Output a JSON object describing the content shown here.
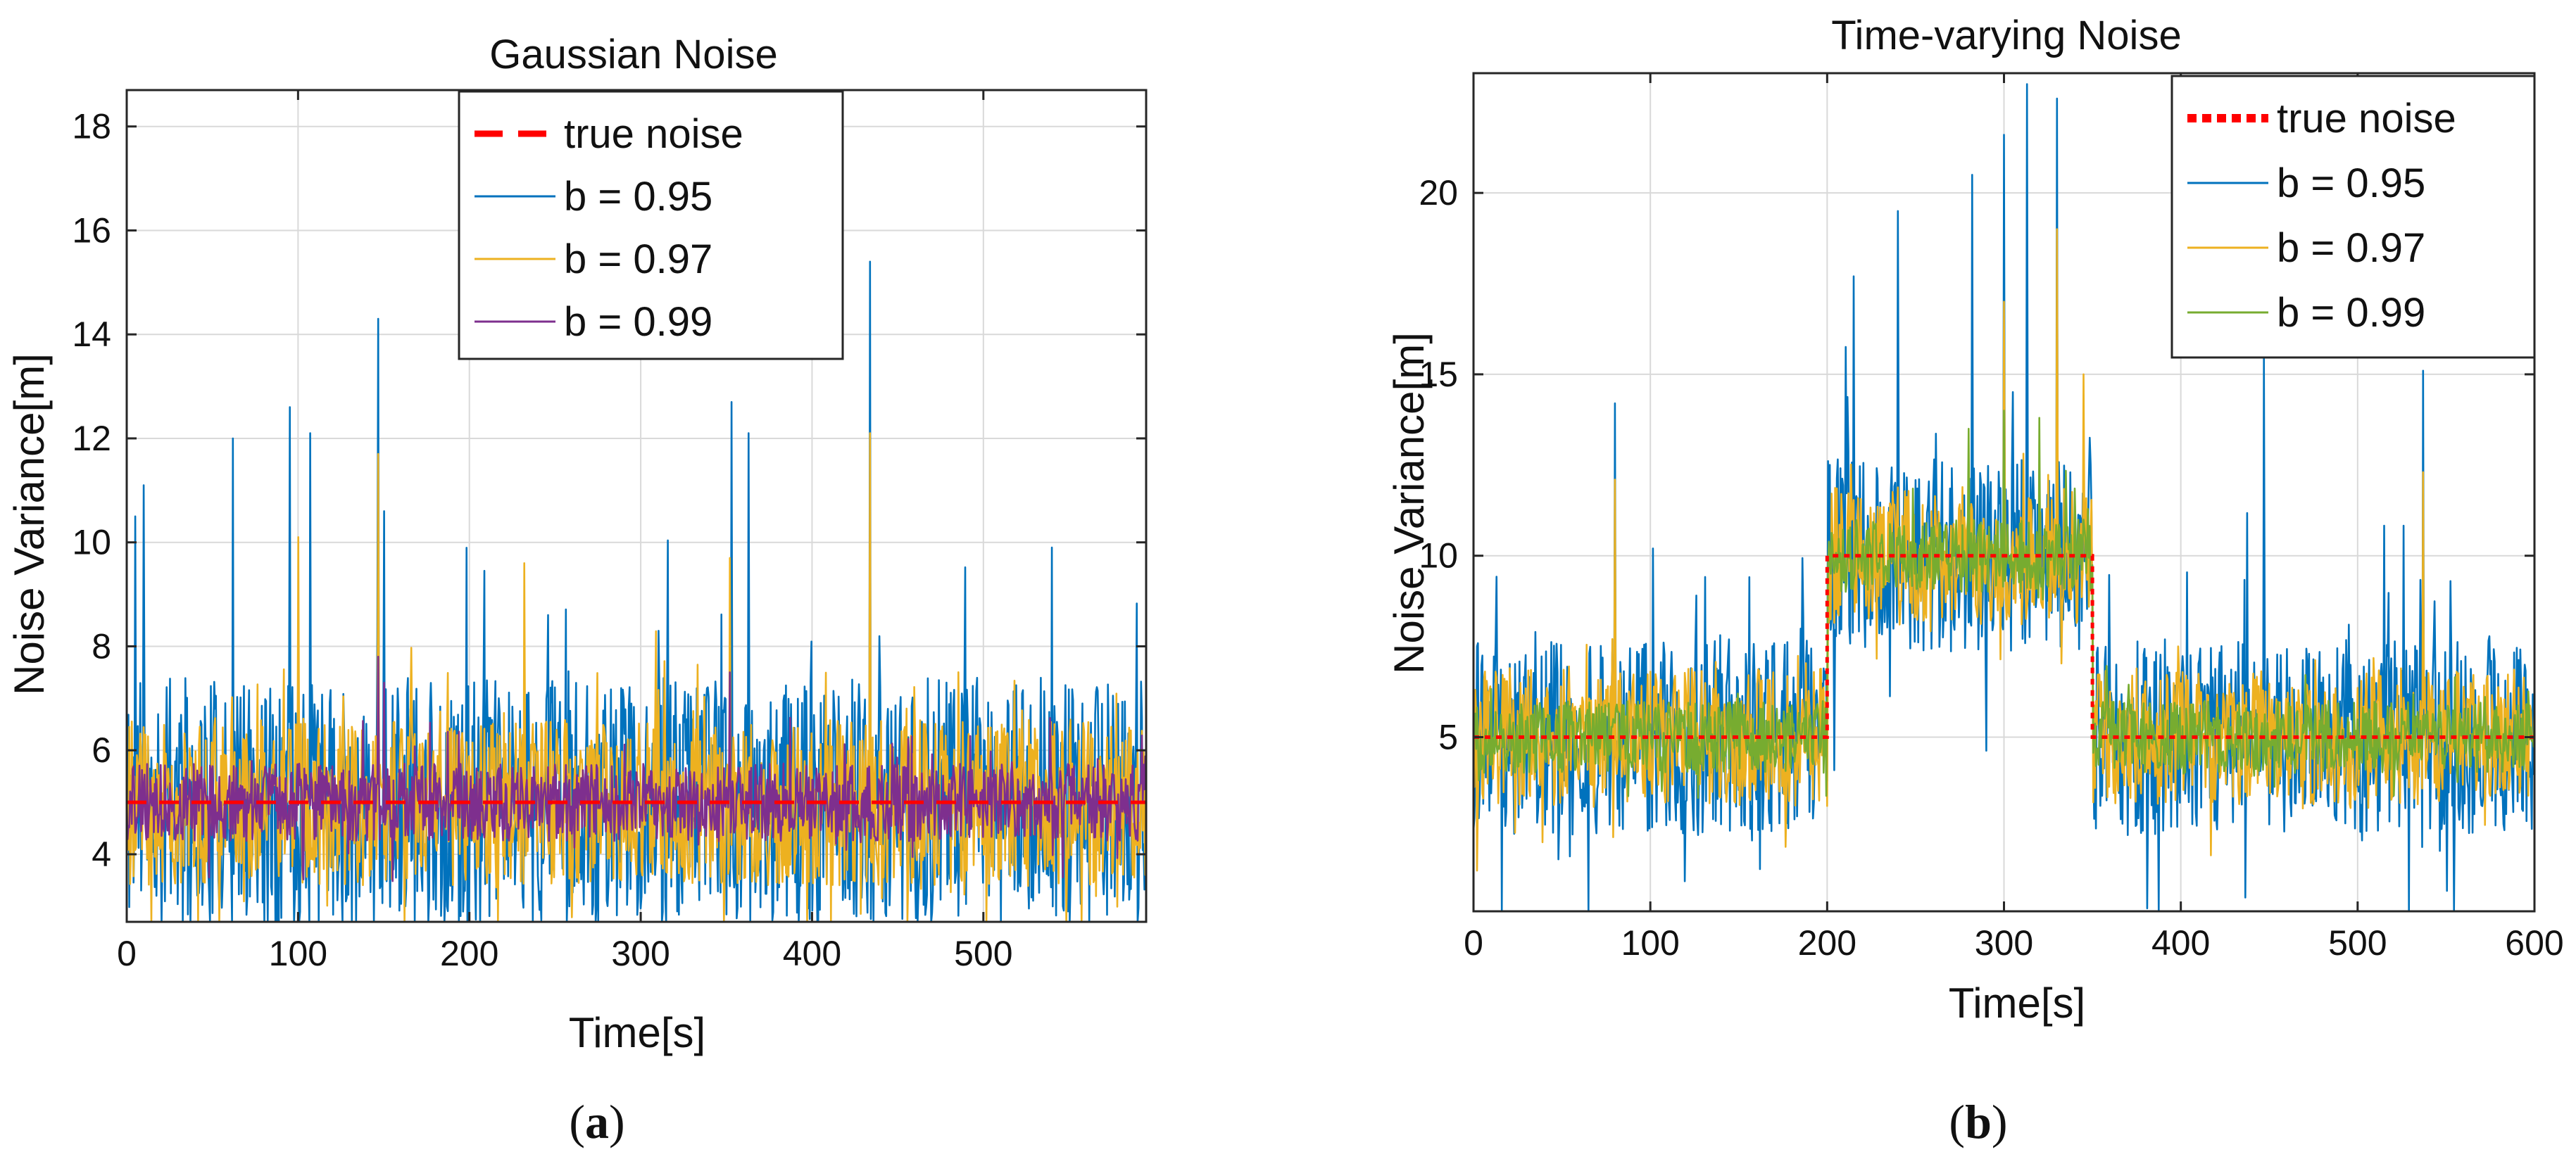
{
  "figure": {
    "panel_labels": [
      {
        "open": "(",
        "letter": "a",
        "close": ")"
      },
      {
        "open": "(",
        "letter": "b",
        "close": ")"
      }
    ]
  },
  "chart_data": [
    {
      "type": "line",
      "title": "Gaussian Noise",
      "xlabel": "Time[s]",
      "ylabel": "Noise Variance[m]",
      "xlim": [
        0,
        595
      ],
      "ylim": [
        2.7,
        18.7
      ],
      "xticks": [
        0,
        100,
        200,
        300,
        400,
        500
      ],
      "yticks": [
        4,
        6,
        8,
        10,
        12,
        14,
        16,
        18
      ],
      "grid": true,
      "legend_position": "top-center",
      "series": [
        {
          "name": "true noise",
          "color": "#ff0000",
          "style": "dashed",
          "segments": [
            {
              "x_start": 0,
              "x_end": 595,
              "mean": 5
            }
          ]
        },
        {
          "name": "b = 0.95",
          "color": "#0072bd",
          "style": "solid",
          "segments": [
            {
              "x_start": 0,
              "x_end": 595,
              "mean": 5
            }
          ],
          "spread": 2.4,
          "seed": 11,
          "peaks": [
            [
              5,
              10.5
            ],
            [
              10,
              11.1
            ],
            [
              62,
              12.0
            ],
            [
              95,
              12.6
            ],
            [
              107,
              12.1
            ],
            [
              147,
              14.3
            ],
            [
              150,
              10.6
            ],
            [
              353,
              12.7
            ],
            [
              363,
              12.1
            ],
            [
              434,
              15.4
            ],
            [
              540,
              9.9
            ]
          ]
        },
        {
          "name": "b = 0.97",
          "color": "#edb120",
          "style": "solid",
          "segments": [
            {
              "x_start": 0,
              "x_end": 595,
              "mean": 5
            }
          ],
          "spread": 1.6,
          "seed": 23,
          "peaks": [
            [
              147,
              11.7
            ],
            [
              434,
              12.1
            ],
            [
              352,
              9.7
            ],
            [
              100,
              10.1
            ],
            [
              232,
              9.6
            ]
          ]
        },
        {
          "name": "b = 0.99",
          "color": "#7e2f8e",
          "style": "solid",
          "segments": [
            {
              "x_start": 0,
              "x_end": 595,
              "mean": 5
            }
          ],
          "spread": 0.75,
          "seed": 37,
          "peaks": [
            [
              147,
              7.8
            ],
            [
              352,
              7.5
            ],
            [
              150,
              7.3
            ]
          ]
        }
      ]
    },
    {
      "type": "line",
      "title": "Time-varying Noise",
      "xlabel": "Time[s]",
      "ylabel": "Noise Variance[m]",
      "xlim": [
        0,
        600
      ],
      "ylim": [
        0.2,
        23.3
      ],
      "xticks": [
        0,
        100,
        200,
        300,
        400,
        500,
        600
      ],
      "yticks": [
        5,
        10,
        15,
        20
      ],
      "grid": true,
      "legend_position": "top-right",
      "series": [
        {
          "name": "true noise",
          "color": "#ff0000",
          "style": "dotted",
          "segments": [
            {
              "x_start": 0,
              "x_end": 200,
              "mean": 5
            },
            {
              "x_start": 200,
              "x_end": 350,
              "mean": 10
            },
            {
              "x_start": 350,
              "x_end": 600,
              "mean": 5
            }
          ]
        },
        {
          "name": "b = 0.95",
          "color": "#0072bd",
          "style": "solid",
          "segments": [
            {
              "x_start": 0,
              "x_end": 200,
              "mean": 5
            },
            {
              "x_start": 200,
              "x_end": 350,
              "mean": 10
            },
            {
              "x_start": 350,
              "x_end": 600,
              "mean": 5
            }
          ],
          "spread": 2.7,
          "seed": 51,
          "peaks": [
            [
              80,
              14.2
            ],
            [
              215,
              17.7
            ],
            [
              240,
              19.5
            ],
            [
              282,
              20.5
            ],
            [
              300,
              21.6
            ],
            [
              313,
              23.0
            ],
            [
              330,
              22.6
            ],
            [
              447,
              15.5
            ],
            [
              537,
              15.1
            ]
          ]
        },
        {
          "name": "b = 0.97",
          "color": "#edb120",
          "style": "solid",
          "segments": [
            {
              "x_start": 0,
              "x_end": 200,
              "mean": 5
            },
            {
              "x_start": 200,
              "x_end": 350,
              "mean": 10
            },
            {
              "x_start": 350,
              "x_end": 600,
              "mean": 5
            }
          ],
          "spread": 1.9,
          "seed": 63,
          "peaks": [
            [
              80,
              12.1
            ],
            [
              300,
              17.0
            ],
            [
              330,
              19.0
            ],
            [
              345,
              15.0
            ],
            [
              537,
              12.3
            ]
          ]
        },
        {
          "name": "b = 0.99",
          "color": "#77ac30",
          "style": "solid",
          "segments": [
            {
              "x_start": 0,
              "x_end": 200,
              "mean": 5
            },
            {
              "x_start": 200,
              "x_end": 350,
              "mean": 10
            },
            {
              "x_start": 350,
              "x_end": 600,
              "mean": 5
            }
          ],
          "spread": 1.0,
          "seed": 77,
          "peaks": [
            [
              300,
              14.0
            ],
            [
              280,
              13.5
            ],
            [
              320,
              13.8
            ]
          ]
        }
      ]
    }
  ]
}
